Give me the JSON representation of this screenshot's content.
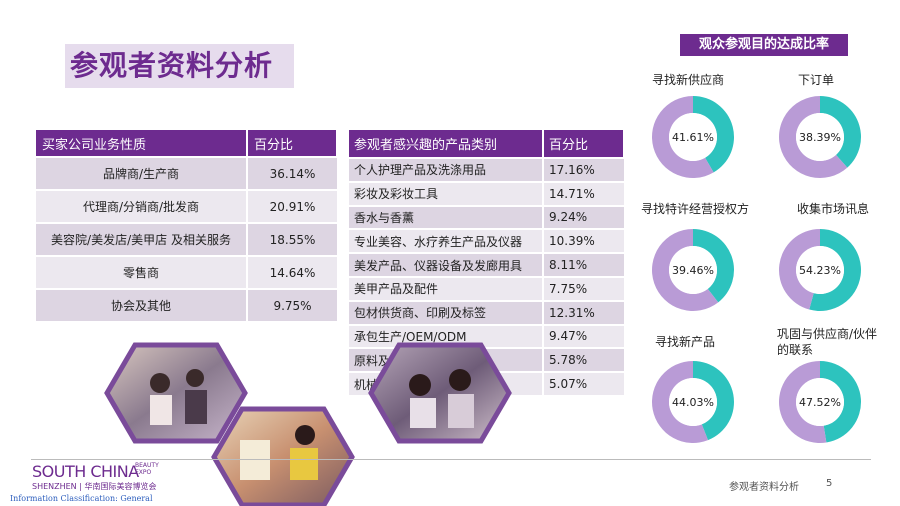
{
  "page": {
    "title": "参观者资料分析",
    "footer_text": "参观者资料分析",
    "page_number": "5",
    "info_classification": "Information Classification: General"
  },
  "logo": {
    "main": "SOUTH CHINA",
    "sup_line1": "BEAUTY",
    "sup_line2": "EXPO",
    "sub": "SHENZHEN | 华南国际美容博览会"
  },
  "table_business": {
    "headers": [
      "买家公司业务性质",
      "百分比"
    ],
    "rows": [
      {
        "label": "品牌商/生产商",
        "value": "36.14%"
      },
      {
        "label": "代理商/分销商/批发商",
        "value": "20.91%"
      },
      {
        "label": "美容院/美发店/美甲店 及相关服务",
        "value": "18.55%"
      },
      {
        "label": "零售商",
        "value": "14.64%"
      },
      {
        "label": "协会及其他",
        "value": "9.75%"
      }
    ]
  },
  "table_products": {
    "headers": [
      "参观者感兴趣的产品类别",
      "百分比"
    ],
    "rows": [
      {
        "label": "个人护理产品及洗涤用品",
        "value": "17.16%"
      },
      {
        "label": "彩妆及彩妆工具",
        "value": "14.71%"
      },
      {
        "label": "香水与香薰",
        "value": "9.24%"
      },
      {
        "label": "专业美容、水疗养生产品及仪器",
        "value": "10.39%"
      },
      {
        "label": "美发产品、仪器设备及发廊用具",
        "value": "8.11%"
      },
      {
        "label": "美甲产品及配件",
        "value": "7.75%"
      },
      {
        "label": "包材供货商、印刷及标签",
        "value": "12.31%"
      },
      {
        "label": "承包生产/OEM/ODM",
        "value": "9.47%"
      },
      {
        "label": "原料及检测",
        "value": "5.78%"
      },
      {
        "label": "机械及设备",
        "value": "5.07%"
      }
    ]
  },
  "donuts": {
    "title": "观众参观目的达成比率",
    "colors": {
      "achieved": "#2dc3be",
      "rest": "#b99bd6"
    },
    "items": [
      {
        "label": "寻找新供应商",
        "value": "41.61%",
        "fraction": 0.4161
      },
      {
        "label": "下订单",
        "value": "38.39%",
        "fraction": 0.3839
      },
      {
        "label": "寻找特许经营授权方",
        "value": "39.46%",
        "fraction": 0.3946
      },
      {
        "label": "收集市场讯息",
        "value": "54.23%",
        "fraction": 0.5423
      },
      {
        "label": "寻找新产品",
        "value": "44.03%",
        "fraction": 0.4403
      },
      {
        "label_line1": "巩固与供应商/伙伴",
        "label_line2": "的联系",
        "value": "47.52%",
        "fraction": 0.4752
      }
    ]
  },
  "photos": [
    {
      "icon": "exhibition-visitors-photo"
    },
    {
      "icon": "product-display-photo"
    },
    {
      "icon": "visitors-with-masks-photo"
    }
  ]
}
